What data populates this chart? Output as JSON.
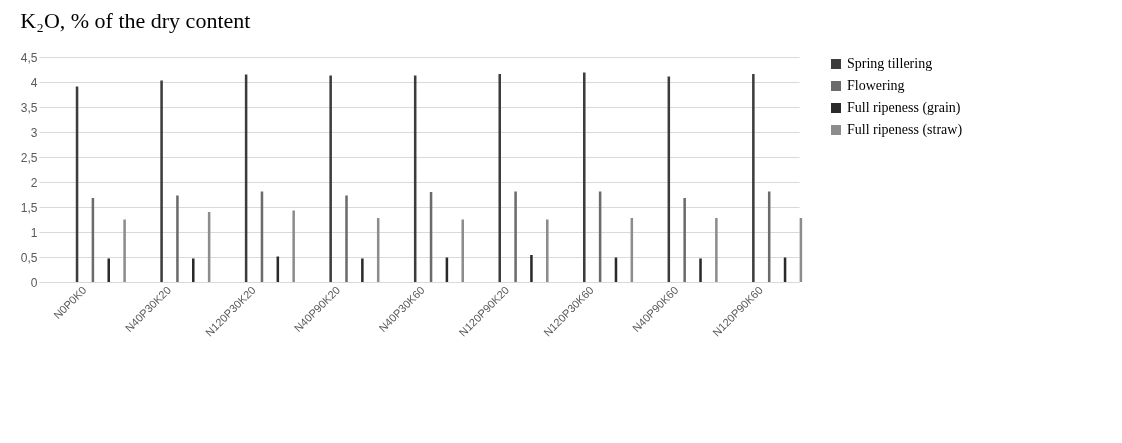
{
  "chart_data": {
    "type": "bar",
    "title": "K₂O,  % of the dry content",
    "categories": [
      "N0P0K0",
      "N40P30K20",
      "N120P30K20",
      "N40P90K20",
      "N40P30K60",
      "N120P90K20",
      "N120P30K60",
      "N40P90K60",
      "N120P90K60"
    ],
    "series": [
      {
        "name": "Spring tillering",
        "color": "#3c3c3c",
        "values": [
          3.91,
          4.03,
          4.15,
          4.13,
          4.13,
          4.16,
          4.19,
          4.11,
          4.16
        ]
      },
      {
        "name": "Flowering",
        "color": "#6b6b6b",
        "values": [
          1.68,
          1.73,
          1.81,
          1.73,
          1.8,
          1.81,
          1.81,
          1.68,
          1.81
        ]
      },
      {
        "name": "Full ripeness (grain)",
        "color": "#2a2a2a",
        "values": [
          0.47,
          0.47,
          0.51,
          0.47,
          0.49,
          0.54,
          0.49,
          0.47,
          0.49
        ]
      },
      {
        "name": "Full ripeness (straw)",
        "color": "#8c8c8c",
        "values": [
          1.25,
          1.4,
          1.43,
          1.28,
          1.25,
          1.25,
          1.28,
          1.28,
          1.28
        ]
      }
    ],
    "ylim": [
      0,
      4.5
    ],
    "yticks": [
      0,
      {
        "value": 0.5,
        "label": "0,5"
      },
      1,
      {
        "value": 1.5,
        "label": "1,5"
      },
      2,
      {
        "value": 2.5,
        "label": "2,5"
      },
      3,
      {
        "value": 3.5,
        "label": "3,5"
      },
      4,
      {
        "value": 4.5,
        "label": "4,5"
      }
    ],
    "grid": "y",
    "legend": "right"
  }
}
